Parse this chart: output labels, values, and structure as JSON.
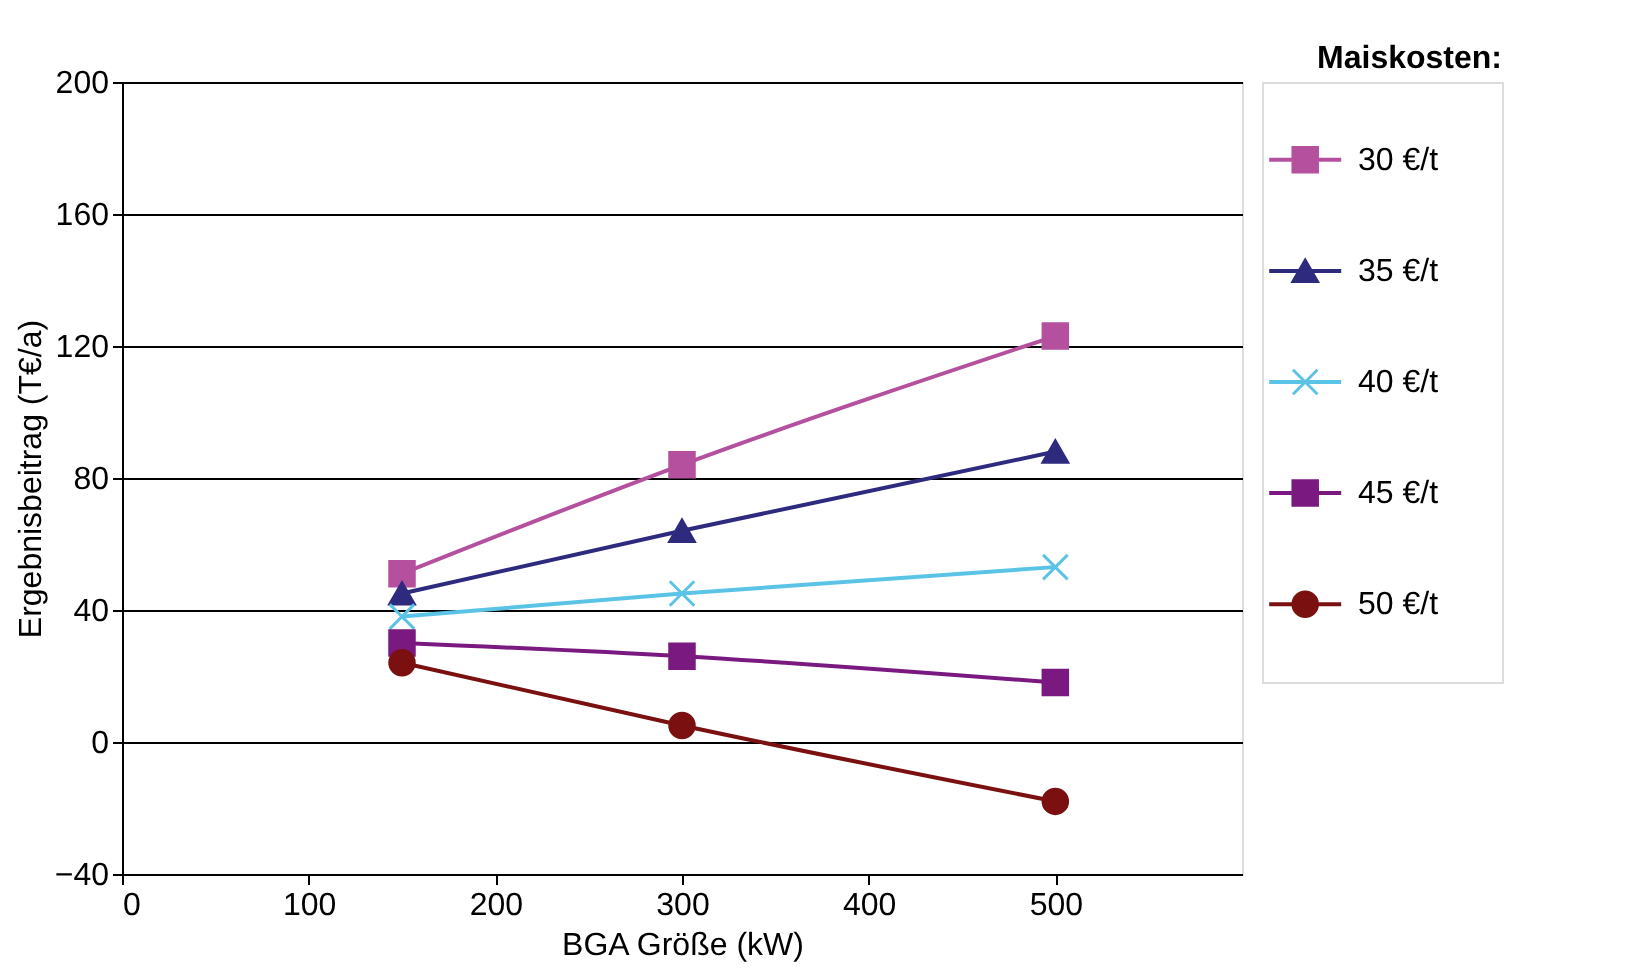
{
  "chart_data": {
    "type": "line",
    "xlabel": "BGA Größe  (kW)",
    "ylabel": "Ergebnisbeitrag (T€/a)",
    "legend_title": "Maiskosten:",
    "xlim": [
      0,
      600
    ],
    "xticks": [
      0,
      100,
      200,
      300,
      400,
      500
    ],
    "ylim": [
      -40,
      200
    ],
    "yticks": [
      -40,
      0,
      40,
      80,
      120,
      160,
      200
    ],
    "grid": "y",
    "legend": "right",
    "line_style": "solid",
    "series": [
      {
        "name": "30 €/t",
        "color": "#b5509e",
        "marker": "square",
        "x": [
          150,
          300,
          500
        ],
        "values": [
          51,
          84,
          123
        ]
      },
      {
        "name": "35 €/t",
        "color": "#2e2a7e",
        "marker": "triangle",
        "x": [
          150,
          300,
          500
        ],
        "values": [
          45,
          64,
          88
        ]
      },
      {
        "name": "40 €/t",
        "color": "#5bc4e6",
        "marker": "cross",
        "x": [
          150,
          300,
          500
        ],
        "values": [
          38,
          45,
          53
        ]
      },
      {
        "name": "45 €/t",
        "color": "#7a1a80",
        "marker": "square",
        "x": [
          150,
          300,
          500
        ],
        "values": [
          30,
          26,
          18
        ]
      },
      {
        "name": "50 €/t",
        "color": "#7a1010",
        "marker": "circle",
        "x": [
          150,
          300,
          500
        ],
        "values": [
          24,
          5,
          -18
        ]
      }
    ]
  }
}
